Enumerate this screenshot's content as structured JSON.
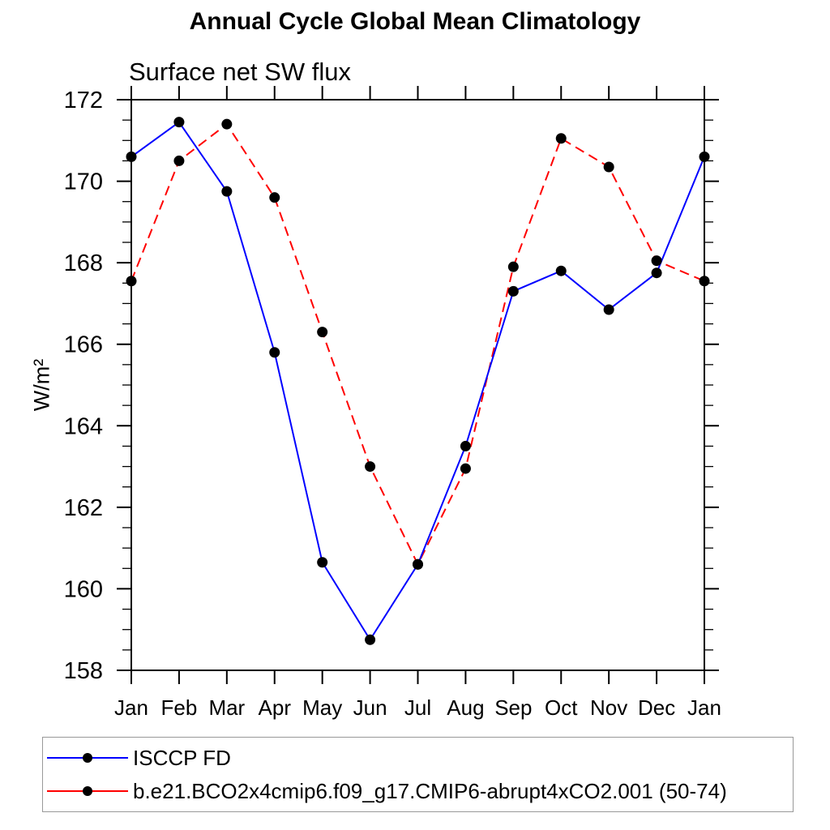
{
  "chart_data": {
    "type": "line",
    "title": "Annual Cycle Global Mean Climatology",
    "subtitle": "Surface net SW flux",
    "ylabel": "W/m²",
    "xlabel": "",
    "categories": [
      "Jan",
      "Feb",
      "Mar",
      "Apr",
      "May",
      "Jun",
      "Jul",
      "Aug",
      "Sep",
      "Oct",
      "Nov",
      "Dec",
      "Jan"
    ],
    "ylim": [
      158,
      172
    ],
    "yticks": [
      158,
      160,
      162,
      164,
      166,
      168,
      170,
      172
    ],
    "y_minor_step": 0.5,
    "grid": false,
    "marker_color": "#000000",
    "axis_color": "#000000",
    "legend_position": "bottom-left-box",
    "series": [
      {
        "name": "ISCCP FD",
        "color": "#0000ff",
        "line_style": "solid",
        "marker": "circle",
        "values": [
          170.6,
          171.45,
          169.75,
          165.8,
          160.65,
          158.75,
          160.6,
          163.5,
          167.3,
          167.8,
          166.85,
          167.75,
          170.6
        ]
      },
      {
        "name": "b.e21.BCO2x4cmip6.f09_g17.CMIP6-abrupt4xCO2.001 (50-74)",
        "color": "#ff0000",
        "line_style": "dashed",
        "marker": "circle",
        "values": [
          167.55,
          170.5,
          171.4,
          169.6,
          166.3,
          163.0,
          160.6,
          162.95,
          167.9,
          171.05,
          170.35,
          168.05,
          167.55
        ]
      }
    ]
  }
}
